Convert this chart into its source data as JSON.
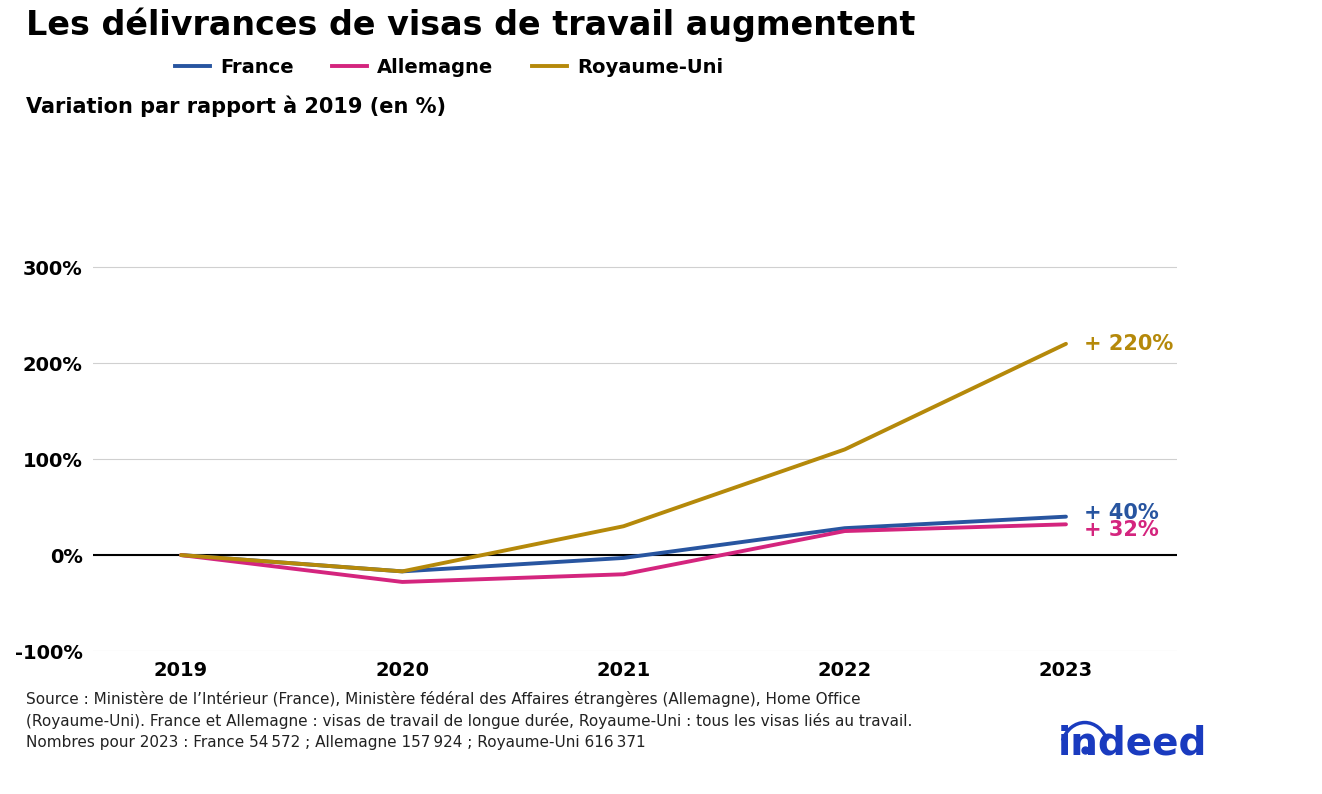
{
  "title": "Les délivrances de visas de travail augmentent",
  "subtitle": "Variation par rapport à 2019 (en %)",
  "years": [
    2019,
    2020,
    2021,
    2022,
    2023
  ],
  "france": [
    0,
    -17,
    -3,
    28,
    40
  ],
  "allemagne": [
    0,
    -28,
    -20,
    25,
    32
  ],
  "royaume_uni": [
    0,
    -17,
    30,
    110,
    220
  ],
  "france_color": "#2855a0",
  "allemagne_color": "#d4257e",
  "royaume_uni_color": "#b5890a",
  "france_label": "France",
  "allemagne_label": "Allemagne",
  "royaume_uni_label": "Royaume-Uni",
  "france_end_label": "+ 40%",
  "allemagne_end_label": "+ 32%",
  "royaume_uni_end_label": "+ 220%",
  "ylim": [
    -100,
    330
  ],
  "yticks": [
    -100,
    0,
    100,
    200,
    300
  ],
  "ytick_labels": [
    "-100%",
    "0%",
    "100%",
    "200%",
    "300%"
  ],
  "source_text": "Source : Ministère de l’Intérieur (France), Ministère fédéral des Affaires étrangères (Allemagne), Home Office\n(Royaume-Uni). France et Allemagne : visas de travail de longue durée, Royaume-Uni : tous les visas liés au travail.\nNombres pour 2023 : France 54 572 ; Allemagne 157 924 ; Royaume-Uni 616 371",
  "line_width": 2.8,
  "background_color": "#ffffff",
  "title_fontsize": 24,
  "subtitle_fontsize": 15,
  "legend_fontsize": 14,
  "tick_fontsize": 14,
  "source_fontsize": 11,
  "annotation_fontsize": 15
}
